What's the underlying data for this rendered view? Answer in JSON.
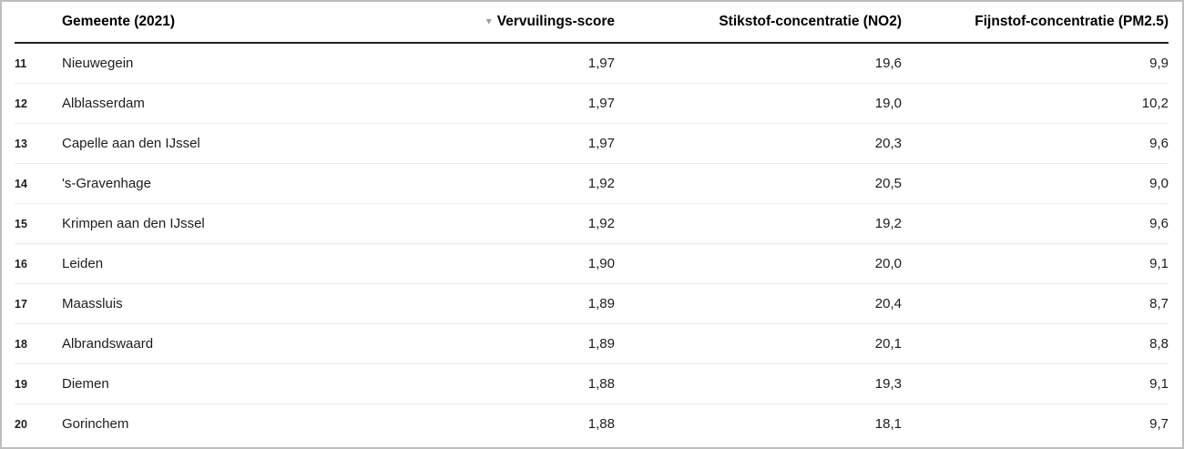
{
  "table": {
    "header": {
      "rank": "",
      "gemeente": "Gemeente (2021)",
      "score": "Vervuilings-score",
      "no2": "Stikstof-concentratie (NO2)",
      "pm25": "Fijnstof-concentratie (PM2.5)",
      "sort_indicator": "▾",
      "sorted_column": "score",
      "sort_direction": "descending"
    },
    "rows": [
      {
        "rank": "11",
        "gemeente": "Nieuwegein",
        "score": "1,97",
        "no2": "19,6",
        "pm25": "9,9"
      },
      {
        "rank": "12",
        "gemeente": "Alblasserdam",
        "score": "1,97",
        "no2": "19,0",
        "pm25": "10,2"
      },
      {
        "rank": "13",
        "gemeente": "Capelle aan den IJssel",
        "score": "1,97",
        "no2": "20,3",
        "pm25": "9,6"
      },
      {
        "rank": "14",
        "gemeente": "'s-Gravenhage",
        "score": "1,92",
        "no2": "20,5",
        "pm25": "9,0"
      },
      {
        "rank": "15",
        "gemeente": "Krimpen aan den IJssel",
        "score": "1,92",
        "no2": "19,2",
        "pm25": "9,6"
      },
      {
        "rank": "16",
        "gemeente": "Leiden",
        "score": "1,90",
        "no2": "20,0",
        "pm25": "9,1"
      },
      {
        "rank": "17",
        "gemeente": "Maassluis",
        "score": "1,89",
        "no2": "20,4",
        "pm25": "8,7"
      },
      {
        "rank": "18",
        "gemeente": "Albrandswaard",
        "score": "1,89",
        "no2": "20,1",
        "pm25": "8,8"
      },
      {
        "rank": "19",
        "gemeente": "Diemen",
        "score": "1,88",
        "no2": "19,3",
        "pm25": "9,1"
      },
      {
        "rank": "20",
        "gemeente": "Gorinchem",
        "score": "1,88",
        "no2": "18,1",
        "pm25": "9,7"
      }
    ]
  },
  "colors": {
    "frame_border": "#bdbdbd",
    "header_underline": "#212121",
    "row_divider": "#ebebeb",
    "text": "#1d1d1d",
    "sort_icon": "#9e9e9e"
  },
  "chart_data": {
    "type": "table",
    "title": "",
    "columns": [
      "",
      "Gemeente (2021)",
      "Vervuilings-score",
      "Stikstof-concentratie (NO2)",
      "Fijnstof-concentratie (PM2.5)"
    ],
    "sorted_by": "Vervuilings-score",
    "sort_direction": "descending",
    "rows": [
      [
        11,
        "Nieuwegein",
        "1,97",
        "19,6",
        "9,9"
      ],
      [
        12,
        "Alblasserdam",
        "1,97",
        "19,0",
        "10,2"
      ],
      [
        13,
        "Capelle aan den IJssel",
        "1,97",
        "20,3",
        "9,6"
      ],
      [
        14,
        "'s-Gravenhage",
        "1,92",
        "20,5",
        "9,0"
      ],
      [
        15,
        "Krimpen aan den IJssel",
        "1,92",
        "19,2",
        "9,6"
      ],
      [
        16,
        "Leiden",
        "1,90",
        "20,0",
        "9,1"
      ],
      [
        17,
        "Maassluis",
        "1,89",
        "20,4",
        "8,7"
      ],
      [
        18,
        "Albrandswaard",
        "1,89",
        "20,1",
        "8,8"
      ],
      [
        19,
        "Diemen",
        "1,88",
        "19,3",
        "9,1"
      ],
      [
        20,
        "Gorinchem",
        "1,88",
        "18,1",
        "9,7"
      ]
    ]
  }
}
